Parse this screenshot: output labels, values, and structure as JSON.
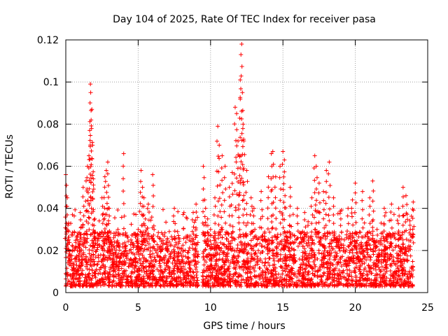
{
  "chart_data": {
    "type": "scatter",
    "title": "Day 104 of 2025, Rate Of TEC Index for receiver pasa",
    "xlabel": "GPS time / hours",
    "ylabel": "ROTI / TECUs",
    "xlim": [
      0,
      25
    ],
    "ylim": [
      0,
      0.12
    ],
    "xticks": [
      0,
      5,
      10,
      15,
      20,
      25
    ],
    "yticks": [
      0,
      0.02,
      0.04,
      0.06,
      0.08,
      0.1,
      0.12
    ],
    "xtick_labels": [
      "0",
      "5",
      "10",
      "15",
      "20",
      "25"
    ],
    "ytick_labels": [
      "0",
      "0.02",
      "0.04",
      "0.06",
      "0.08",
      "0.1",
      "0.12"
    ],
    "grid": true,
    "marker": "+",
    "color": "#ff0000",
    "data_gap_hours": [
      9.15,
      9.45
    ],
    "series": [
      {
        "name": "ROTI",
        "x": [
          0.0,
          0.1,
          0.15,
          0.2,
          0.3,
          0.5,
          0.8,
          1.0,
          1.2,
          1.4,
          1.5,
          1.6,
          1.65,
          1.7,
          1.72,
          1.75,
          1.8,
          1.85,
          1.9,
          2.0,
          2.2,
          2.5,
          2.7,
          2.8,
          2.9,
          3.0,
          3.1,
          3.3,
          3.6,
          4.0,
          4.5,
          5.0,
          5.2,
          5.3,
          5.4,
          5.5,
          5.7,
          6.0,
          6.1,
          6.2,
          6.5,
          7.0,
          7.5,
          7.2,
          8.0,
          8.5,
          8.8,
          9.0,
          9.5,
          9.6,
          9.8,
          10.0,
          10.3,
          10.5,
          10.6,
          10.8,
          11.0,
          11.3,
          11.5,
          11.7,
          11.8,
          11.9,
          12.0,
          12.05,
          12.1,
          12.15,
          12.2,
          12.25,
          12.3,
          12.5,
          12.8,
          13.0,
          13.5,
          14.0,
          14.2,
          14.3,
          14.5,
          14.8,
          15.0,
          15.1,
          15.5,
          16.0,
          16.5,
          17.0,
          17.2,
          17.3,
          17.5,
          17.8,
          18.0,
          18.2,
          18.5,
          19.0,
          19.5,
          19.8,
          20.0,
          20.5,
          21.0,
          21.2,
          21.5,
          22.0,
          22.5,
          23.0,
          23.3,
          23.5,
          23.8,
          24.0
        ],
        "y": [
          0.056,
          0.045,
          0.032,
          0.025,
          0.015,
          0.012,
          0.02,
          0.038,
          0.05,
          0.053,
          0.06,
          0.065,
          0.077,
          0.099,
          0.095,
          0.082,
          0.087,
          0.07,
          0.054,
          0.035,
          0.028,
          0.045,
          0.055,
          0.058,
          0.062,
          0.04,
          0.025,
          0.018,
          0.03,
          0.066,
          0.025,
          0.03,
          0.058,
          0.05,
          0.045,
          0.035,
          0.042,
          0.056,
          0.03,
          0.02,
          0.015,
          0.025,
          0.04,
          0.018,
          0.015,
          0.02,
          0.038,
          0.042,
          0.06,
          0.044,
          0.035,
          0.03,
          0.045,
          0.079,
          0.07,
          0.065,
          0.06,
          0.05,
          0.057,
          0.088,
          0.085,
          0.072,
          0.065,
          0.101,
          0.113,
          0.118,
          0.095,
          0.08,
          0.072,
          0.058,
          0.045,
          0.04,
          0.048,
          0.055,
          0.066,
          0.067,
          0.055,
          0.06,
          0.067,
          0.063,
          0.05,
          0.04,
          0.038,
          0.045,
          0.065,
          0.06,
          0.052,
          0.048,
          0.058,
          0.062,
          0.045,
          0.035,
          0.04,
          0.044,
          0.052,
          0.048,
          0.045,
          0.053,
          0.03,
          0.04,
          0.042,
          0.04,
          0.05,
          0.046,
          0.03,
          0.043
        ]
      }
    ]
  }
}
